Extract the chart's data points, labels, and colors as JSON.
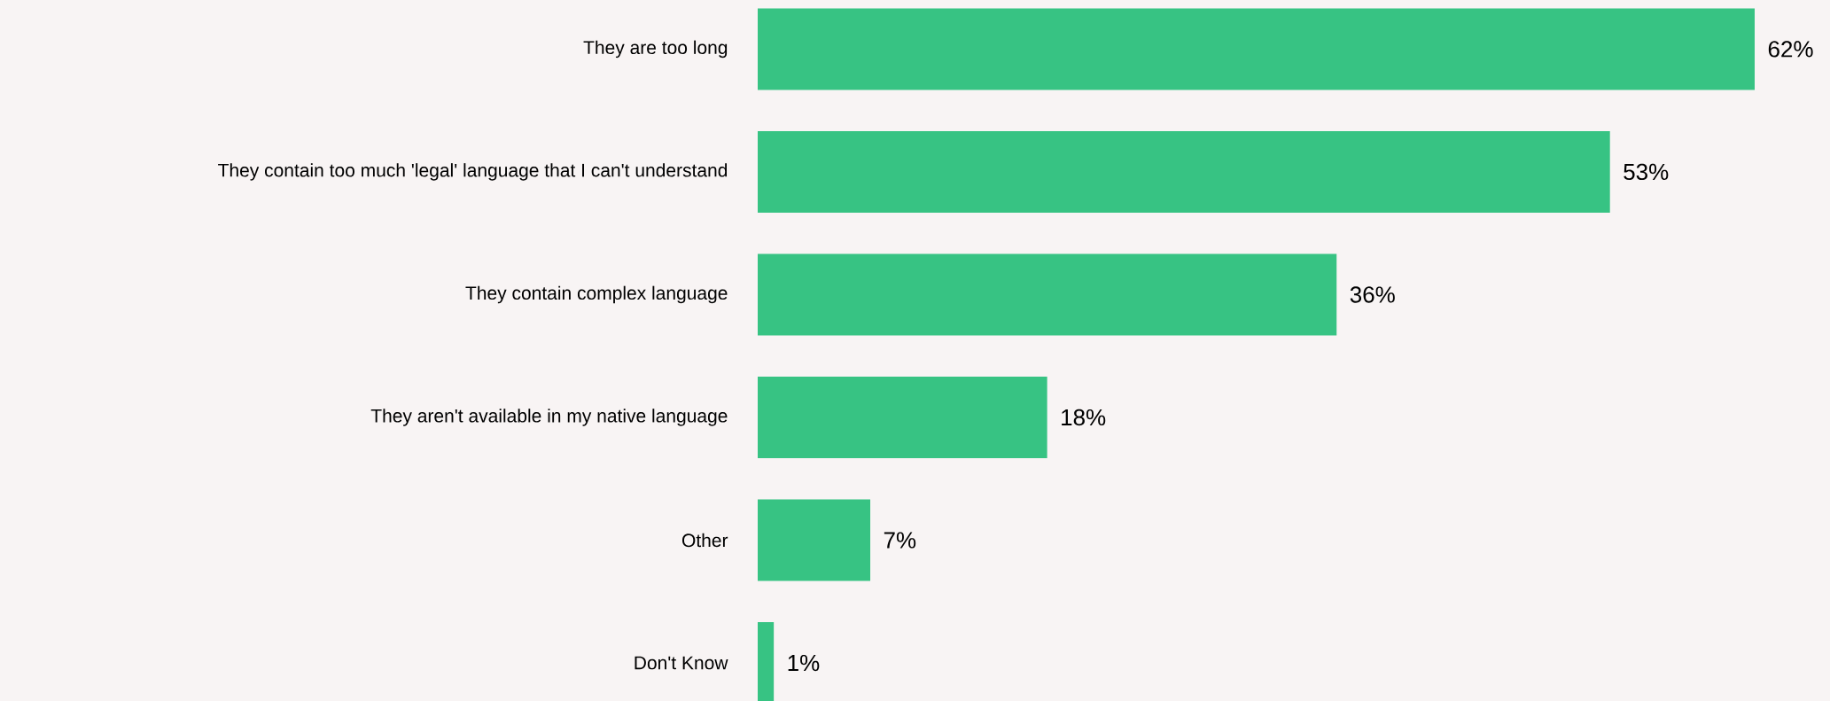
{
  "chart_data": {
    "type": "bar",
    "orientation": "horizontal",
    "categories": [
      "They are too long",
      "They contain too much 'legal' language that I can't understand",
      "They contain complex language",
      "They aren't available in my native language",
      "Other",
      "Don't Know"
    ],
    "values": [
      62,
      53,
      36,
      18,
      7,
      1
    ],
    "value_labels": [
      "62%",
      "53%",
      "36%",
      "18%",
      "7%",
      "1%"
    ],
    "color": "#37c383"
  }
}
